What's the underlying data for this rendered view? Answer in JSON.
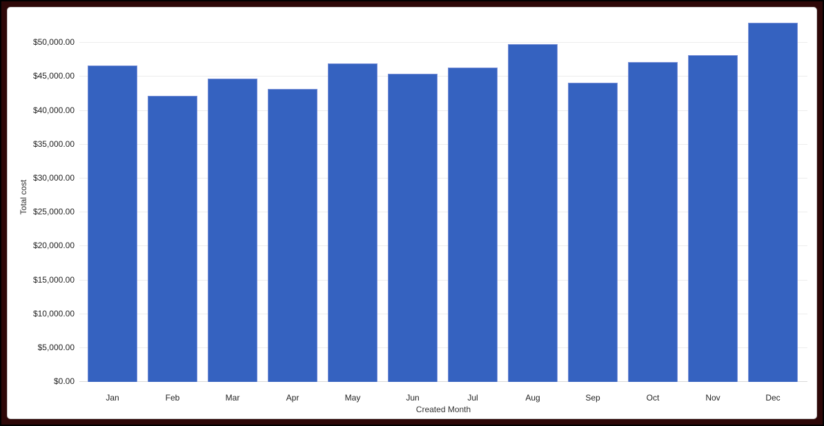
{
  "chart_data": {
    "type": "bar",
    "title": "",
    "categories": [
      "Jan",
      "Feb",
      "Mar",
      "Apr",
      "May",
      "Jun",
      "Jul",
      "Aug",
      "Sep",
      "Oct",
      "Nov",
      "Dec"
    ],
    "values": [
      46600,
      42050,
      44650,
      43100,
      46850,
      45300,
      46300,
      49700,
      44000,
      47100,
      48050,
      52900
    ],
    "xlabel": "Created Month",
    "ylabel": "Total cost",
    "ylim": [
      0,
      55000
    ],
    "ytick_step": 5000,
    "yticks": [
      {
        "value": 0,
        "label": "$0.00"
      },
      {
        "value": 5000,
        "label": "$5,000.00"
      },
      {
        "value": 10000,
        "label": "$10,000.00"
      },
      {
        "value": 15000,
        "label": "$15,000.00"
      },
      {
        "value": 20000,
        "label": "$20,000.00"
      },
      {
        "value": 25000,
        "label": "$25,000.00"
      },
      {
        "value": 30000,
        "label": "$30,000.00"
      },
      {
        "value": 35000,
        "label": "$35,000.00"
      },
      {
        "value": 40000,
        "label": "$40,000.00"
      },
      {
        "value": 45000,
        "label": "$45,000.00"
      },
      {
        "value": 50000,
        "label": "$50,000.00"
      }
    ],
    "grid": true,
    "legend": "none",
    "colors": {
      "bar_fill": "#3562c0",
      "bar_stroke": "#7a91d8",
      "gridline": "#ececec",
      "baseline": "#d9d9d9",
      "tick_text": "#1f1f1f",
      "frame_outer": "#000000",
      "frame_inner": "#2e0808",
      "card_background": "#ffffff",
      "card_border": "#c9c9c9"
    }
  }
}
